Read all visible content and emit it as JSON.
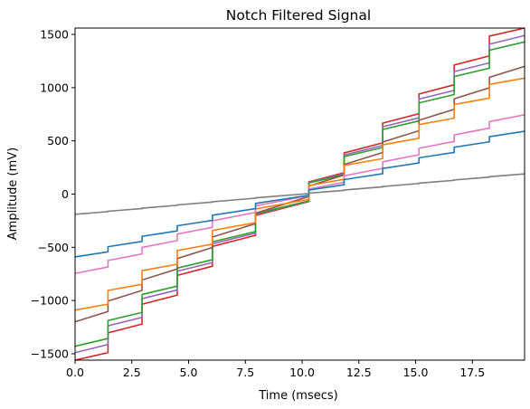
{
  "chart_data": {
    "type": "line",
    "title": "Notch Filtered Signal",
    "xlabel": "Time (msecs)",
    "ylabel": "Amplitude (mV)",
    "xlim": [
      0,
      19.8
    ],
    "ylim": [
      -1560,
      1560
    ],
    "xticks": [
      0,
      2.5,
      5,
      7.5,
      10,
      12.5,
      15,
      17.5
    ],
    "xtick_labels": [
      "0.0",
      "2.5",
      "5.0",
      "7.5",
      "10.0",
      "12.5",
      "15.0",
      "17.5"
    ],
    "yticks": [
      -1500,
      -1000,
      -500,
      0,
      500,
      1000,
      1500
    ],
    "ytick_labels": [
      "−1500",
      "−1000",
      "−500",
      "0",
      "500",
      "1000",
      "1500"
    ],
    "grid": false,
    "legend": "none",
    "step_times": [
      1.45,
      2.95,
      4.5,
      6.05,
      7.95,
      10.3,
      11.85,
      13.55,
      15.15,
      16.7,
      18.25
    ],
    "series": [
      {
        "color": "#d62728",
        "amplitude": 1570,
        "step_fraction": 0.65
      },
      {
        "color": "#9467bd",
        "amplitude": 1490,
        "step_fraction": 0.65
      },
      {
        "color": "#2ca02c",
        "amplitude": 1430,
        "step_fraction": 0.65
      },
      {
        "color": "#8c564b",
        "amplitude": 1200,
        "step_fraction": 0.45
      },
      {
        "color": "#ff7f0e",
        "amplitude": 1090,
        "step_fraction": 0.65
      },
      {
        "color": "#e377c2",
        "amplitude": 745,
        "step_fraction": 0.45
      },
      {
        "color": "#1f77b4",
        "amplitude": 590,
        "step_fraction": 0.45
      },
      {
        "color": "#7f7f7f",
        "amplitude": 190,
        "step_fraction": 0.1
      }
    ]
  }
}
